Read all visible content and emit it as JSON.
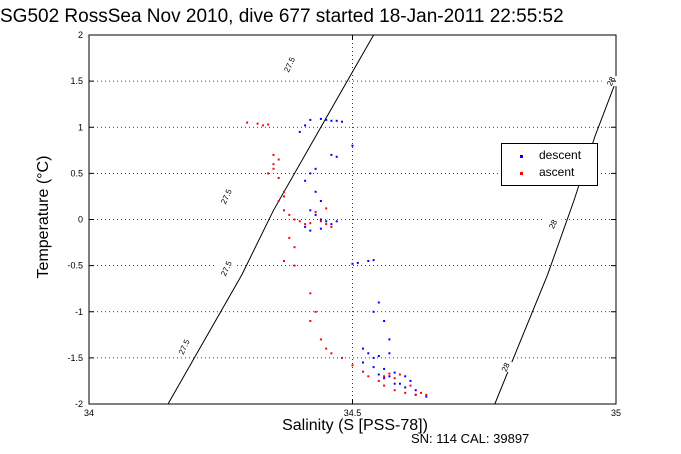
{
  "chart_data": {
    "type": "scatter",
    "title": "SG502 RossSea Nov 2010, dive 677 started 18-Jan-2011 22:55:52",
    "xlabel": "Salinity (S [PSS-78])",
    "ylabel": "Temperature (°C)",
    "xlim": [
      34,
      35
    ],
    "ylim": [
      -2,
      2
    ],
    "x_ticks": [
      "34",
      "34.5",
      "35"
    ],
    "y_ticks": [
      "-2",
      "-1.5",
      "-1",
      "-0.5",
      "0",
      "0.5",
      "1",
      "1.5",
      "2"
    ],
    "grid": true,
    "legend_position": "right",
    "contours": [
      {
        "label": "27.5",
        "points": [
          [
            34.15,
            -2.0
          ],
          [
            34.22,
            -1.3
          ],
          [
            34.29,
            -0.6
          ],
          [
            34.35,
            0.1
          ],
          [
            34.42,
            0.8
          ],
          [
            34.49,
            1.5
          ],
          [
            34.54,
            2.0
          ]
        ]
      },
      {
        "label": "28",
        "points": [
          [
            34.77,
            -2.0
          ],
          [
            34.82,
            -1.3
          ],
          [
            34.87,
            -0.6
          ],
          [
            34.92,
            0.2
          ],
          [
            34.96,
            0.9
          ],
          [
            35.0,
            1.5
          ]
        ]
      }
    ],
    "contour_labels": [
      {
        "text": "27.5",
        "x": 34.38,
        "y": 1.68
      },
      {
        "text": "27.5",
        "x": 34.26,
        "y": 0.25
      },
      {
        "text": "27.5",
        "x": 34.18,
        "y": -1.38
      },
      {
        "text": "27.5",
        "x": 34.26,
        "y": -0.53
      },
      {
        "text": "28",
        "x": 34.99,
        "y": 1.5
      },
      {
        "text": "28",
        "x": 34.88,
        "y": -0.05
      },
      {
        "text": "28",
        "x": 34.79,
        "y": -1.6
      }
    ],
    "series": [
      {
        "name": "descent",
        "color": "#0000ff",
        "points": [
          [
            34.42,
            1.08
          ],
          [
            34.44,
            1.09
          ],
          [
            34.45,
            1.08
          ],
          [
            34.46,
            1.07
          ],
          [
            34.47,
            1.07
          ],
          [
            34.48,
            1.06
          ],
          [
            34.41,
            1.02
          ],
          [
            34.4,
            0.95
          ],
          [
            34.43,
            0.55
          ],
          [
            34.42,
            0.5
          ],
          [
            34.41,
            0.42
          ],
          [
            34.46,
            0.7
          ],
          [
            34.47,
            0.68
          ],
          [
            34.5,
            0.8
          ],
          [
            34.43,
            0.3
          ],
          [
            34.44,
            0.2
          ],
          [
            34.42,
            0.1
          ],
          [
            34.43,
            0.05
          ],
          [
            34.44,
            0.0
          ],
          [
            34.45,
            -0.02
          ],
          [
            34.46,
            -0.05
          ],
          [
            34.41,
            -0.08
          ],
          [
            34.42,
            -0.12
          ],
          [
            34.44,
            -0.1
          ],
          [
            34.47,
            -0.02
          ],
          [
            34.5,
            -0.48
          ],
          [
            34.51,
            -0.47
          ],
          [
            34.53,
            -0.45
          ],
          [
            34.54,
            -0.44
          ],
          [
            34.55,
            -0.9
          ],
          [
            34.54,
            -1.0
          ],
          [
            34.56,
            -1.1
          ],
          [
            34.57,
            -1.3
          ],
          [
            34.52,
            -1.4
          ],
          [
            34.53,
            -1.45
          ],
          [
            34.54,
            -1.5
          ],
          [
            34.55,
            -1.48
          ],
          [
            34.57,
            -1.45
          ],
          [
            34.52,
            -1.55
          ],
          [
            34.54,
            -1.6
          ],
          [
            34.56,
            -1.62
          ],
          [
            34.58,
            -1.66
          ],
          [
            34.6,
            -1.7
          ],
          [
            34.61,
            -1.75
          ],
          [
            34.6,
            -1.82
          ],
          [
            34.58,
            -1.78
          ],
          [
            34.56,
            -1.72
          ],
          [
            34.55,
            -1.68
          ],
          [
            34.57,
            -1.7
          ],
          [
            34.59,
            -1.78
          ],
          [
            34.62,
            -1.85
          ],
          [
            34.62,
            -1.9
          ],
          [
            34.64,
            -1.92
          ]
        ]
      },
      {
        "name": "ascent",
        "color": "#ff0000",
        "points": [
          [
            34.3,
            1.05
          ],
          [
            34.32,
            1.04
          ],
          [
            34.33,
            1.02
          ],
          [
            34.34,
            1.03
          ],
          [
            34.35,
            0.7
          ],
          [
            34.36,
            0.65
          ],
          [
            34.35,
            0.6
          ],
          [
            34.35,
            0.55
          ],
          [
            34.34,
            0.5
          ],
          [
            34.36,
            0.45
          ],
          [
            34.37,
            0.3
          ],
          [
            34.37,
            0.25
          ],
          [
            34.36,
            0.2
          ],
          [
            34.37,
            0.1
          ],
          [
            34.38,
            0.05
          ],
          [
            34.39,
            0.0
          ],
          [
            34.4,
            -0.02
          ],
          [
            34.41,
            -0.05
          ],
          [
            34.42,
            -0.04
          ],
          [
            34.44,
            -0.02
          ],
          [
            34.45,
            -0.05
          ],
          [
            34.46,
            -0.08
          ],
          [
            34.43,
            0.08
          ],
          [
            34.45,
            0.12
          ],
          [
            34.38,
            -0.2
          ],
          [
            34.39,
            -0.3
          ],
          [
            34.37,
            -0.45
          ],
          [
            34.39,
            -0.5
          ],
          [
            34.42,
            -0.8
          ],
          [
            34.43,
            -1.0
          ],
          [
            34.42,
            -1.1
          ],
          [
            34.44,
            -1.3
          ],
          [
            34.45,
            -1.4
          ],
          [
            34.46,
            -1.45
          ],
          [
            34.48,
            -1.5
          ],
          [
            34.5,
            -1.58
          ],
          [
            34.52,
            -1.65
          ],
          [
            34.53,
            -1.7
          ],
          [
            34.55,
            -1.75
          ],
          [
            34.56,
            -1.8
          ],
          [
            34.58,
            -1.85
          ],
          [
            34.6,
            -1.88
          ],
          [
            34.62,
            -1.9
          ],
          [
            34.64,
            -1.9
          ],
          [
            34.57,
            -1.67
          ],
          [
            34.56,
            -1.7
          ],
          [
            34.58,
            -1.72
          ],
          [
            34.59,
            -1.68
          ],
          [
            34.61,
            -1.8
          ],
          [
            34.63,
            -1.88
          ]
        ]
      }
    ]
  },
  "legend": {
    "descent_label": "descent",
    "ascent_label": "ascent",
    "descent_color": "#0000ff",
    "ascent_color": "#ff0000"
  },
  "footer": "SN: 114  CAL: 39897"
}
